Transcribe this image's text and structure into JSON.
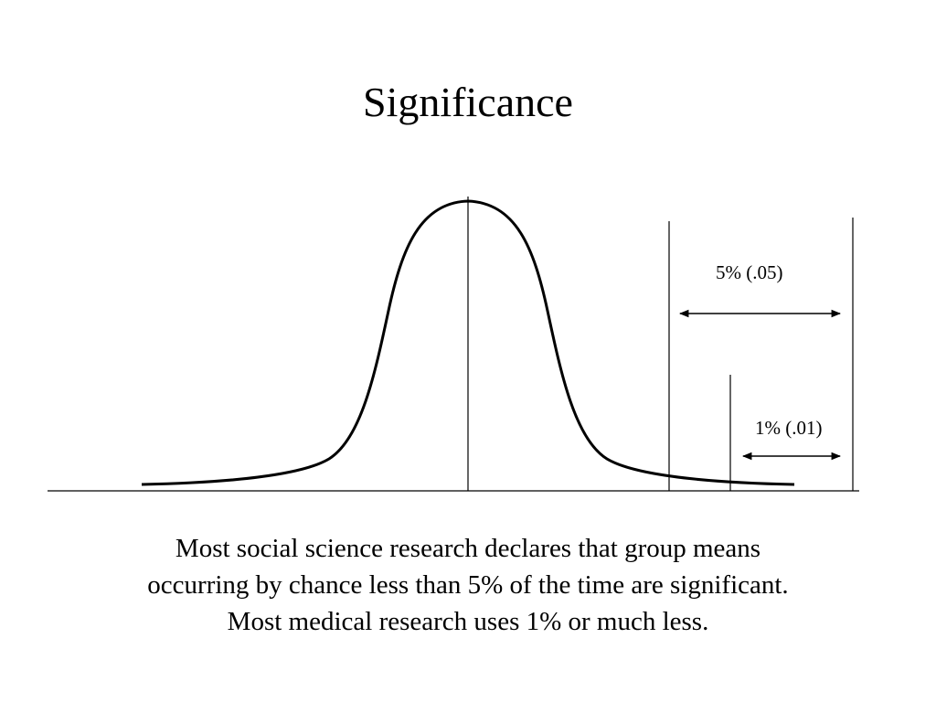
{
  "slide": {
    "title": "Significance"
  },
  "diagram": {
    "label_5": "5% (.05)",
    "label_1": "1% (.01)"
  },
  "caption": {
    "lines": [
      "Most social science research declares that group means",
      "occurring by chance less than 5% of the time are significant.",
      "Most medical research uses 1% or much less."
    ]
  },
  "colors": {
    "line": "#000000",
    "background": "#ffffff"
  }
}
